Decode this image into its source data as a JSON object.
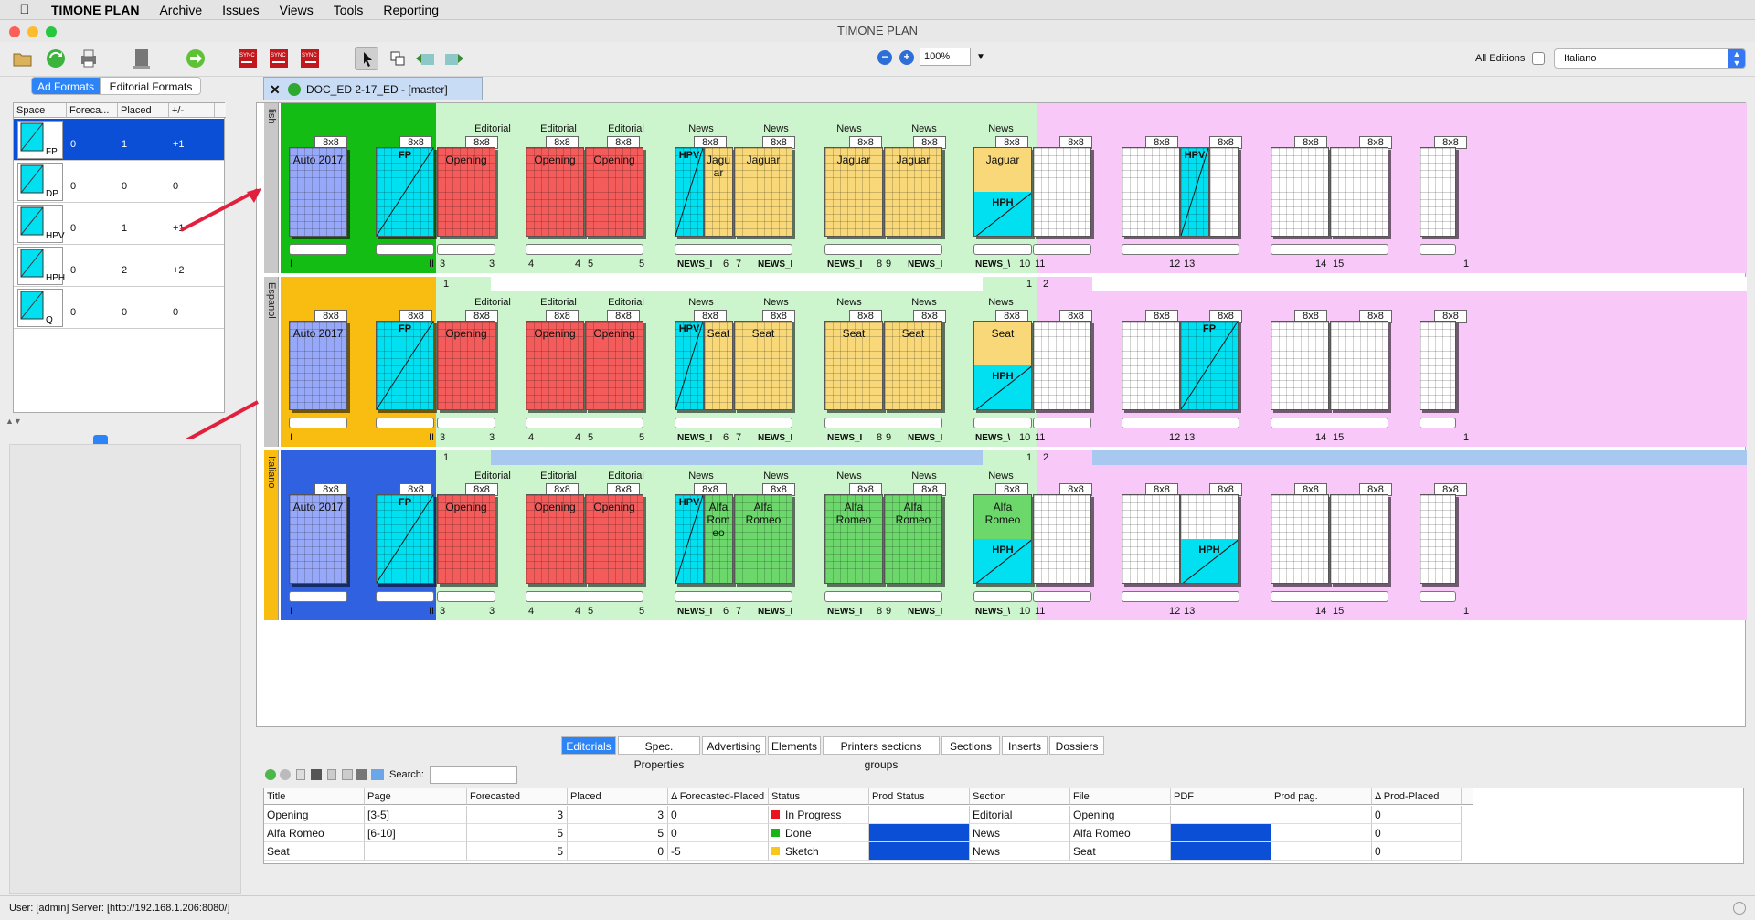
{
  "menubar": {
    "app": "TIMONE PLAN",
    "items": [
      "Archive",
      "Issues",
      "Views",
      "Tools",
      "Reporting"
    ]
  },
  "window": {
    "title": "TIMONE PLAN"
  },
  "toolbar": {
    "zoom": "100%",
    "all_editions_label": "All Editions",
    "edition_value": "Italiano"
  },
  "left": {
    "tabs": [
      "Ad Formats",
      "Editorial Formats"
    ],
    "columns": [
      "Space",
      "Foreca...",
      "Placed",
      "+/-"
    ],
    "rows": [
      {
        "name": "FP",
        "forecast": "0",
        "placed": "1",
        "delta": "+1"
      },
      {
        "name": "DP",
        "forecast": "0",
        "placed": "0",
        "delta": "0"
      },
      {
        "name": "HPV",
        "forecast": "0",
        "placed": "1",
        "delta": "+1"
      },
      {
        "name": "HPH",
        "forecast": "0",
        "placed": "2",
        "delta": "+2"
      },
      {
        "name": "Q",
        "forecast": "0",
        "placed": "0",
        "delta": "0"
      }
    ]
  },
  "editor": {
    "tab_label": "DOC_ED 2-17_ED - [master]"
  },
  "plan": {
    "format": "8x8",
    "rows": [
      {
        "label": "lish",
        "color": "#c8c8c8",
        "cover": "#14bd14",
        "ed": "#cdf5cd"
      },
      {
        "label": "Espanol",
        "color": "#c8c8c8",
        "cover": "#f8bd10",
        "ed": "#cdf5cd"
      },
      {
        "label": "Italiano",
        "color": "#f8bd10",
        "cover": "#2f61e0",
        "ed": "#cdf5cd"
      }
    ],
    "sections": {
      "editorial": "Editorial",
      "news": "News"
    },
    "labels": {
      "auto": "Auto 2017",
      "fp": "FP",
      "hpv": "HPV",
      "hph": "HPH",
      "opening": "Opening",
      "news_short": "NEWS_I",
      "news_v": "NEWS_\\"
    },
    "brands": [
      "Jaguar",
      "Seat",
      "Alfa Romeo"
    ],
    "brands_narrow": [
      "Jagu ar",
      "Seat",
      "Alfa Rom eo"
    ],
    "row_marks": {
      "one": "1",
      "two": "2"
    },
    "page_numbers": {
      "i": "I",
      "ii": "II",
      "p3": "3",
      "p4": "4",
      "p5": "5",
      "p6": "6",
      "p7": "7",
      "p8": "8",
      "p9": "9",
      "p10": "10",
      "p11": "11",
      "p12": "12",
      "p13": "13",
      "p14": "14",
      "p15": "15",
      "p1": "1"
    }
  },
  "bottom": {
    "tabs": [
      "Editorials",
      "Spec. Properties",
      "Advertising",
      "Elements",
      "Printers sections groups",
      "Sections",
      "Inserts",
      "Dossiers"
    ],
    "search_label": "Search:",
    "columns": [
      "Title",
      "Page",
      "Forecasted",
      "Placed",
      "Δ Forecasted-Placed",
      "Status",
      "Prod Status",
      "Section",
      "File",
      "PDF",
      "Prod pag.",
      "Δ Prod-Placed"
    ],
    "rows": [
      {
        "title": "Opening",
        "page": "[3-5]",
        "forecast": "3",
        "placed": "3",
        "delta": "0",
        "status": "In Progress",
        "status_color": "#e8141e",
        "section": "Editorial",
        "file": "Opening",
        "prod_delta": "0"
      },
      {
        "title": "Alfa Romeo",
        "page": "[6-10]",
        "forecast": "5",
        "placed": "5",
        "delta": "0",
        "status": "Done",
        "status_color": "#18b418",
        "section": "News",
        "file": "Alfa Romeo",
        "prod_delta": "0"
      },
      {
        "title": "Seat",
        "page": "",
        "forecast": "5",
        "placed": "0",
        "delta": "-5",
        "status": "Sketch",
        "status_color": "#f8c818",
        "section": "News",
        "file": "Seat",
        "prod_delta": "0"
      }
    ]
  },
  "status": {
    "text": "User: [admin]   Server: [http://192.168.1.206:8080/]"
  },
  "colors": {
    "blue_page": "#98a8f8",
    "cyan": "#00e0f0",
    "red": "#f45c5c",
    "yellow": "#f8d878",
    "green": "#6cd86c",
    "pink": "#f8c8f8",
    "select": "#0a4fd6"
  }
}
